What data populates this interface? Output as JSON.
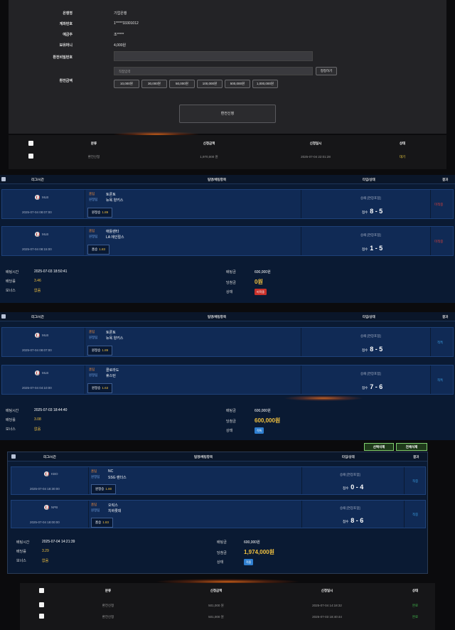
{
  "form": {
    "bank_label": "은행명",
    "bank_value": "기업은행",
    "account_label": "계좌번호",
    "account_value": "1*****33301012",
    "holder_label": "예금주",
    "holder_value": "조*****",
    "money_label": "보유머니",
    "money_value": "4,000원",
    "pw_label": "환전비밀번호",
    "amount_label": "환전금액",
    "amount_placeholder": "직접입력",
    "reset_label": "정정하기",
    "quick_amounts": [
      "10,000원",
      "30,000원",
      "50,000원",
      "100,000원",
      "500,000원",
      "1,000,000원"
    ],
    "submit_label": "환전신청"
  },
  "history_top": {
    "headers": [
      "분류",
      "신청금액",
      "신청일시",
      "상태"
    ],
    "rows": [
      {
        "type": "환전신청",
        "amount": "1,970,000 원",
        "date": "2025-07-04 22:01:28",
        "status": "대기",
        "status_color": "#f0d040"
      }
    ]
  },
  "slips": [
    {
      "header": {
        "league": "리그/시간",
        "pick": "팀명/배팅항목",
        "type": "타입/상태",
        "result": "결과"
      },
      "games": [
        {
          "league": "MLB",
          "time": "2025-07-04 08:07:00",
          "home_tag": "홈팀",
          "home": "토론토",
          "away_tag": "원정팀",
          "away": "뉴욕 양키스",
          "pick": "원정승",
          "odds": "1.89",
          "bet_type": "승패 [연장포함]",
          "score_label": "점수",
          "score": "8 - 5",
          "result": "미적중",
          "result_color": "#e0403a"
        },
        {
          "league": "MLB",
          "time": "2025-07-04 08:15:00",
          "home_tag": "홈팀",
          "home": "애틀랜타",
          "away_tag": "원정팀",
          "away": "LA 에인절스",
          "pick": "홈승",
          "odds": "1.83",
          "bet_type": "승패 [연장포함]",
          "score_label": "점수",
          "score": "1 - 5",
          "result": "미적중",
          "result_color": "#e0403a"
        }
      ],
      "summary": {
        "bet_time_label": "배팅시간",
        "bet_time": "2025-07-03 18:50:41",
        "odds_label": "배당률",
        "odds": "3.46",
        "bonus_label": "보너스",
        "bonus": "없음",
        "bet_amount_label": "배팅금",
        "bet_amount": "600,000원",
        "win_label": "당첨금",
        "win": "0원",
        "status_label": "상태",
        "status": "미적중",
        "status_color": "#c8302a"
      }
    },
    {
      "header": {
        "league": "리그/시간",
        "pick": "팀명/배팅항목",
        "type": "타입/상태",
        "result": "결과"
      },
      "games": [
        {
          "league": "MLB",
          "time": "2025-07-04 08:07:00",
          "home_tag": "홈팀",
          "home": "토론토",
          "away_tag": "원정팀",
          "away": "뉴욕 양키스",
          "pick": "원정승",
          "odds": "1.89",
          "bet_type": "승패 [연장포함]",
          "score_label": "점수",
          "score": "8 - 5",
          "result": "적특",
          "result_color": "#3a9de0"
        },
        {
          "league": "MLB",
          "time": "2025-07-04 04:10:00",
          "home_tag": "홈팀",
          "home": "콜로라도",
          "away_tag": "원정팀",
          "away": "휴스턴",
          "pick": "원정승",
          "odds": "1.63",
          "bet_type": "승패 [연장포함]",
          "score_label": "점수",
          "score": "7 - 6",
          "result": "적특",
          "result_color": "#3a9de0"
        }
      ],
      "summary": {
        "bet_time_label": "배팅시간",
        "bet_time": "2025-07-03 18:44:40",
        "odds_label": "배당률",
        "odds": "3.08",
        "bonus_label": "보너스",
        "bonus": "없음",
        "bet_amount_label": "배팅금",
        "bet_amount": "600,000원",
        "win_label": "당첨금",
        "win": "600,000원",
        "status_label": "상태",
        "status": "적특",
        "status_color": "#2f7fd0"
      }
    },
    {
      "header": {
        "league": "리그/시간",
        "pick": "팀명/배팅항목",
        "type": "타입/상태",
        "result": "결과"
      },
      "actions": {
        "delete_selected": "선택삭제",
        "delete_all": "전체삭제"
      },
      "games": [
        {
          "league": "KBO",
          "time": "2025-07-04 18:30:00",
          "home_tag": "홈팀",
          "home": "NC",
          "away_tag": "원정팀",
          "away": "SSG 랜더스",
          "pick": "원정승",
          "odds": "1.80",
          "bet_type": "승패 [연장포함]",
          "score_label": "점수",
          "score": "0 - 4",
          "result": "적중",
          "result_color": "#3a9de0"
        },
        {
          "league": "NPB",
          "time": "2025-07-04 18:00:00",
          "home_tag": "홈팀",
          "home": "오릭스",
          "away_tag": "원정팀",
          "away": "치바롯데",
          "pick": "홈승",
          "odds": "1.83",
          "bet_type": "승패 [연장포함]",
          "score_label": "점수",
          "score": "8 - 6",
          "result": "적중",
          "result_color": "#3a9de0"
        }
      ],
      "summary": {
        "bet_time_label": "배팅시간",
        "bet_time": "2025-07-04 14:21:39",
        "odds_label": "배당률",
        "odds": "3.29",
        "bonus_label": "보너스",
        "bonus": "없음",
        "bet_amount_label": "배팅금",
        "bet_amount": "600,000원",
        "win_label": "당첨금",
        "win": "1,974,000원",
        "status_label": "상태",
        "status": "적중",
        "status_color": "#2f7fd0"
      }
    }
  ],
  "history_bottom": {
    "headers": [
      "분류",
      "신청금액",
      "신청일시",
      "상태"
    ],
    "rows": [
      {
        "type": "환전신청",
        "amount": "501,000 원",
        "date": "2025-07-04 14:18:32",
        "status": "완료",
        "status_color": "#3fb24a"
      },
      {
        "type": "환전신청",
        "amount": "501,000 원",
        "date": "2025-07-03 18:40:44",
        "status": "완료",
        "status_color": "#3fb24a"
      }
    ]
  }
}
